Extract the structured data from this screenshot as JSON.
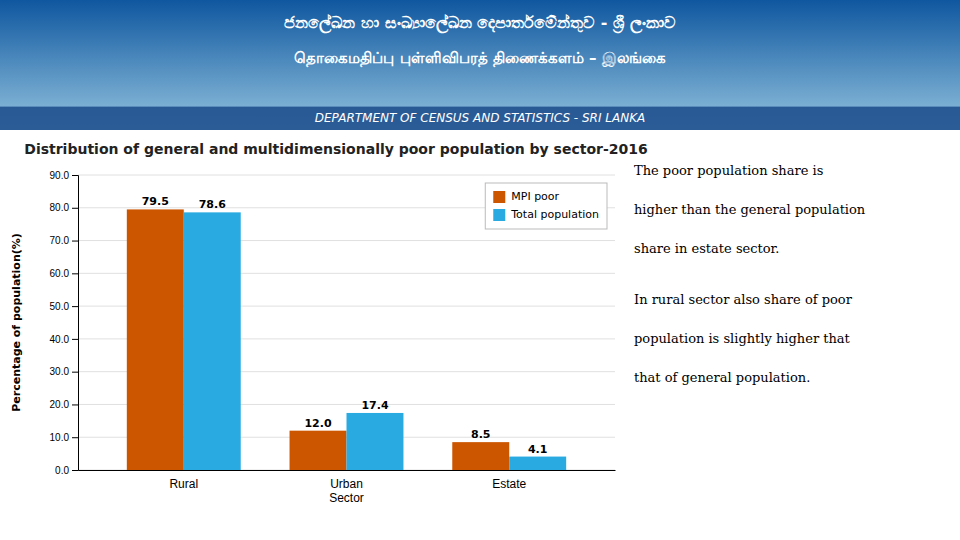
{
  "header": [
    "ජනලේඛන හා සංඛ්‍යාලේඛන දෙපාර්තමේන්තුව - ශ්‍රී ලංකාව",
    "தொகைமதிப்பு புள்ளிவிபரத் திணைக்களம் – இலங்கை",
    "DEPARTMENT OF CENSUS AND STATISTICS - SRI LANKA"
  ],
  "notes": [
    "The  poor  population  share  is",
    "higher than the general population",
    "share in estate sector.",
    "In rural sector also share of poor",
    "population is slightly higher that",
    "that of general population."
  ],
  "chart_data": {
    "type": "bar",
    "title": "Distribution of general and multidimensionally poor population by sector-2016",
    "categories": [
      "Rural",
      "Urban\nSector",
      "Estate"
    ],
    "series": [
      {
        "name": "MPI poor",
        "color": "#CC5500",
        "values": [
          79.5,
          12.0,
          8.5
        ],
        "value_labels": [
          "79.5",
          "12.0",
          "8.5"
        ]
      },
      {
        "name": "Total population",
        "color": "#29ABE2",
        "values": [
          78.6,
          17.4,
          4.1
        ],
        "value_labels": [
          "78.6",
          "17.4",
          "4.1"
        ]
      }
    ],
    "ylabel": "Percentage of population(%)",
    "ylim": [
      0,
      90
    ],
    "yticks": [
      {
        "value": 0,
        "label": "0.0"
      },
      {
        "value": 10,
        "label": "10.0"
      },
      {
        "value": 20,
        "label": "20.0"
      },
      {
        "value": 30,
        "label": "30.0"
      },
      {
        "value": 40,
        "label": "40.0"
      },
      {
        "value": 50,
        "label": "50.0"
      },
      {
        "value": 60,
        "label": "60.0"
      },
      {
        "value": 70,
        "label": "70.0"
      },
      {
        "value": 80,
        "label": "80.0"
      },
      {
        "value": 90,
        "label": "90.0"
      }
    ],
    "grid": true,
    "legend": "upper right",
    "data_labels": true
  }
}
